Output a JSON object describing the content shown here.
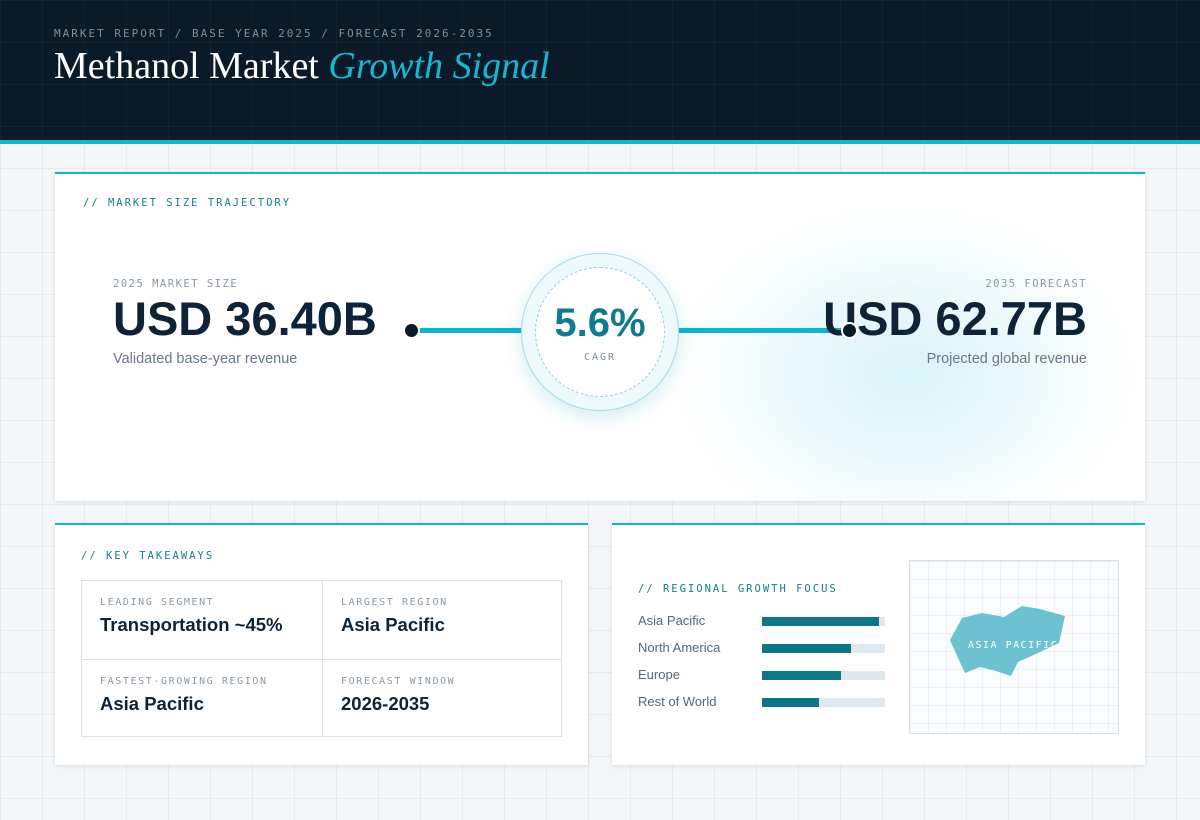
{
  "header": {
    "breadcrumb": "MARKET REPORT / BASE YEAR 2025 / FORECAST 2026-2035",
    "title_main": "Methanol Market",
    "title_accent": "Growth Signal"
  },
  "trajectory": {
    "section_label": "// MARKET SIZE TRAJECTORY",
    "start": {
      "label": "2025 MARKET SIZE",
      "value": "USD 36.40B",
      "caption": "Validated base-year revenue"
    },
    "end": {
      "label": "2035 FORECAST",
      "value": "USD 62.77B",
      "caption": "Projected global revenue"
    },
    "cagr": {
      "value": "5.6%",
      "label": "CAGR"
    }
  },
  "takeaways": {
    "section_label": "// KEY TAKEAWAYS",
    "items": [
      {
        "label": "LEADING SEGMENT",
        "value": "Transportation ~45%"
      },
      {
        "label": "LARGEST REGION",
        "value": "Asia Pacific"
      },
      {
        "label": "FASTEST-GROWING REGION",
        "value": "Asia Pacific"
      },
      {
        "label": "FORECAST WINDOW",
        "value": "2026-2035"
      }
    ]
  },
  "regional": {
    "section_label": "// REGIONAL GROWTH FOCUS",
    "map_label": "ASIA PACIFIC",
    "colors": {
      "bar": "#0f7686",
      "track": "#dfe8ee",
      "map_region": "#6cc2d0"
    }
  },
  "chart_data": {
    "type": "bar",
    "orientation": "horizontal",
    "categories": [
      "Asia Pacific",
      "North America",
      "Europe",
      "Rest of World"
    ],
    "values": [
      0.95,
      0.72,
      0.64,
      0.46
    ],
    "xlim": [
      0,
      1
    ]
  }
}
